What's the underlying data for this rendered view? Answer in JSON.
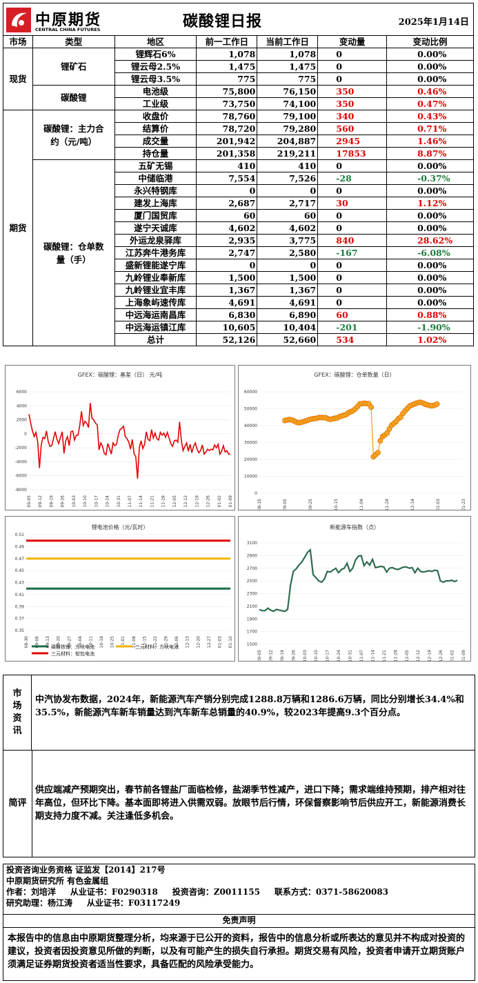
{
  "header": {
    "logo_cn": "中原期货",
    "logo_en": "CENTRAL CHINA FUTURES",
    "title": "碳酸锂日报",
    "date": "2025年1月14日"
  },
  "columns": [
    "市场",
    "类型",
    "地区",
    "前一工作日",
    "当前工作日",
    "变动量",
    "变动比例"
  ],
  "spot": {
    "market": "现货",
    "ore_label": "锂矿石",
    "ore_rows": [
      {
        "name": "锂辉石6%",
        "prev": "1,078",
        "curr": "1,078",
        "chg": "0",
        "pct": "0.00%"
      },
      {
        "name": "锂云母2.5%",
        "prev": "1,475",
        "curr": "1,475",
        "chg": "0",
        "pct": "0.00%"
      },
      {
        "name": "锂云母3.5%",
        "prev": "775",
        "curr": "775",
        "chg": "0",
        "pct": "0.00%"
      }
    ],
    "lc_label": "碳酸锂",
    "lc_rows": [
      {
        "name": "电池级",
        "prev": "75,800",
        "curr": "76,150",
        "chg": "350",
        "pct": "0.46%"
      },
      {
        "name": "工业级",
        "prev": "73,750",
        "curr": "74,100",
        "chg": "350",
        "pct": "0.47%"
      }
    ]
  },
  "futures": {
    "market": "期货",
    "main_label": "碳酸锂：主力合约（元/吨）",
    "main_rows": [
      {
        "name": "收盘价",
        "prev": "78,760",
        "curr": "79,100",
        "chg": "340",
        "pct": "0.43%"
      },
      {
        "name": "结算价",
        "prev": "78,720",
        "curr": "79,280",
        "chg": "560",
        "pct": "0.71%"
      },
      {
        "name": "成交量",
        "prev": "201,942",
        "curr": "204,887",
        "chg": "2945",
        "pct": "1.46%"
      },
      {
        "name": "持仓量",
        "prev": "201,358",
        "curr": "219,211",
        "chg": "17853",
        "pct": "8.87%"
      }
    ],
    "wh_label": "碳酸锂：仓单数量（手）",
    "wh_rows": [
      {
        "name": "五矿无锡",
        "prev": "410",
        "curr": "410",
        "chg": "0",
        "pct": "0.00%"
      },
      {
        "name": "中储临港",
        "prev": "7,554",
        "curr": "7,526",
        "chg": "-28",
        "pct": "-0.37%"
      },
      {
        "name": "永兴特钢库",
        "prev": "0",
        "curr": "0",
        "chg": "0",
        "pct": "0.00%"
      },
      {
        "name": "建发上海库",
        "prev": "2,687",
        "curr": "2,717",
        "chg": "30",
        "pct": "1.12%"
      },
      {
        "name": "厦门国贸库",
        "prev": "60",
        "curr": "60",
        "chg": "0",
        "pct": "0.00%"
      },
      {
        "name": "遂宁天诚库",
        "prev": "4,602",
        "curr": "4,602",
        "chg": "0",
        "pct": "0.00%"
      },
      {
        "name": "外运龙泉驿库",
        "prev": "2,935",
        "curr": "3,775",
        "chg": "840",
        "pct": "28.62%"
      },
      {
        "name": "江苏奔牛港务库",
        "prev": "2,747",
        "curr": "2,580",
        "chg": "-167",
        "pct": "-6.08%"
      },
      {
        "name": "盛新锂能遂宁库",
        "prev": "0",
        "curr": "0",
        "chg": "0",
        "pct": "0.00%"
      },
      {
        "name": "九岭锂业奉新库",
        "prev": "1,500",
        "curr": "1,500",
        "chg": "0",
        "pct": "0.00%"
      },
      {
        "name": "九岭锂业宜丰库",
        "prev": "1,367",
        "curr": "1,367",
        "chg": "0",
        "pct": "0.00%"
      },
      {
        "name": "上海象屿速传库",
        "prev": "4,691",
        "curr": "4,691",
        "chg": "0",
        "pct": "0.00%"
      },
      {
        "name": "中远海运南昌库",
        "prev": "6,830",
        "curr": "6,890",
        "chg": "60",
        "pct": "0.88%"
      },
      {
        "name": "中远海运镇江库",
        "prev": "10,605",
        "curr": "10,404",
        "chg": "-201",
        "pct": "-1.90%"
      },
      {
        "name": "总计",
        "prev": "52,126",
        "curr": "52,660",
        "chg": "534",
        "pct": "1.02%"
      }
    ]
  },
  "colors": {
    "up": "#e00000",
    "down": "#1a7a3a",
    "flat": "#000000"
  },
  "chart_data": [
    {
      "type": "line",
      "title": "GFEX：碳酸锂：基差（日） 元/吨",
      "x_ticks": [
        "09-05",
        "09-12",
        "09-19",
        "09-26",
        "10-03",
        "10-10",
        "10-17",
        "10-24",
        "10-31",
        "11-07",
        "11-14",
        "11-21",
        "11-28",
        "12-05",
        "12-12",
        "12-19",
        "12-26",
        "01-02",
        "01-09"
      ],
      "ylim": [
        -8000,
        6000
      ],
      "y_ticks": [
        6000,
        4000,
        2000,
        0,
        -2000,
        -4000,
        -6000,
        -8000
      ],
      "color": "#e00000",
      "values": [
        2800,
        1500,
        400,
        -400,
        200,
        -1200,
        -4900,
        -1600,
        -500,
        -700,
        400,
        -1100,
        -1800,
        -1700,
        -700,
        300,
        -800,
        -1400,
        -500,
        300,
        -2800,
        -1000,
        -400,
        -1700,
        300,
        400,
        -900,
        -200,
        -200,
        1200,
        3200,
        1200,
        1800,
        1500,
        900,
        4400,
        2200,
        2000,
        1500,
        1300,
        -2300,
        -1300,
        -1800,
        -2800,
        -3000,
        -1400,
        -2100,
        -2900,
        -1300,
        -1700,
        -1500,
        -200,
        600,
        800,
        1100,
        -400,
        -700,
        -1200,
        -2200,
        -800,
        -2800,
        -3300,
        -6400,
        -2000,
        -1000,
        -2100,
        -1500,
        300,
        -800,
        -1000,
        600,
        -600,
        100,
        -700,
        -900,
        200,
        -200,
        100,
        -500,
        200,
        -600,
        -1400,
        -1800,
        -1000,
        -900,
        -1200,
        1700,
        -900,
        -2400,
        -1800,
        -1300,
        -2500,
        -1500,
        -2700,
        -1800,
        -1300,
        -2200,
        -2700,
        -2400,
        -1600,
        -2900,
        -2600,
        -2200,
        -2400,
        -2200,
        -2300,
        -1600,
        -2000,
        -1500,
        -2900,
        -2500,
        -1700,
        -2600,
        -2400,
        -2900,
        -2900
      ]
    },
    {
      "type": "scatter",
      "title": "GFEX：碳酸锂：仓单数量（日）",
      "x_ticks": [
        "08-16",
        "09-05",
        "09-25",
        "10-15",
        "11-04",
        "11-24",
        "12-14",
        "01-03",
        "01-23"
      ],
      "ylim": [
        0,
        60000
      ],
      "y_ticks": [
        60000,
        50000,
        40000,
        30000,
        20000,
        10000,
        0
      ],
      "color": "#f39c12",
      "values": [
        43000,
        43300,
        43600,
        43300,
        42800,
        42100,
        41700,
        41900,
        42300,
        42700,
        43100,
        43600,
        44000,
        44200,
        44300,
        44800,
        44800,
        44700,
        44700,
        44000,
        43700,
        44000,
        44400,
        44500,
        45300,
        45700,
        46100,
        46500,
        47600,
        48200,
        48800,
        49900,
        51300,
        52800,
        53000,
        53200,
        53000,
        52900,
        50900,
        21600,
        22800,
        24000,
        31000,
        33500,
        34400,
        35600,
        38000,
        40200,
        41300,
        42400,
        44100,
        45000,
        47200,
        48800,
        50200,
        51600,
        52200,
        52700,
        53300,
        53700,
        53700,
        53200,
        52600,
        52200,
        51800,
        51800,
        52100,
        52700
      ]
    },
    {
      "type": "line",
      "title": "锂电池价格（元/瓦时）",
      "x_ticks": [
        "08-30",
        "09-06",
        "09-13",
        "09-20",
        "09-27",
        "10-04",
        "10-11",
        "10-18",
        "10-25",
        "11-01",
        "11-08",
        "11-15",
        "11-22",
        "11-29",
        "12-06",
        "12-13",
        "12-20",
        "12-27",
        "01-03",
        "01-10"
      ],
      "ylim": [
        0.35,
        0.51
      ],
      "y_ticks": [
        0.51,
        0.49,
        0.47,
        0.45,
        0.43,
        0.41,
        0.39,
        0.37,
        0.35
      ],
      "series": [
        {
          "name": "磷酸铁锂：方块电池",
          "color": "#1a6e46",
          "value": 0.42
        },
        {
          "name": "三元材料：方块电池",
          "color": "#f2b300",
          "value": 0.47
        },
        {
          "name": "三元材料：软包电池",
          "color": "#e00000",
          "value": 0.5
        }
      ]
    },
    {
      "type": "line",
      "title": "新能源车指数（点）",
      "x_ticks": [
        "09-05",
        "09-12",
        "09-19",
        "09-26",
        "10-03",
        "10-10",
        "10-17",
        "10-24",
        "10-31",
        "11-07",
        "11-14",
        "11-21",
        "11-28",
        "12-05",
        "12-12",
        "12-19",
        "12-26",
        "01-02",
        "01-09"
      ],
      "ylim": [
        1500,
        3100
      ],
      "y_ticks": [
        3100,
        2900,
        2700,
        2500,
        2300,
        2100,
        1900,
        1700,
        1500
      ],
      "color": "#2d6b4e",
      "values": [
        2050,
        2030,
        2030,
        2070,
        2040,
        2020,
        2050,
        2040,
        2030,
        2020,
        2050,
        2430,
        2650,
        2690,
        2750,
        2800,
        2870,
        2950,
        2990,
        2600,
        2550,
        2500,
        2480,
        2530,
        2650,
        2640,
        2670,
        2700,
        2630,
        2680,
        2700,
        2780,
        2650,
        2700,
        2830,
        2890,
        2900,
        2740,
        2800,
        2750,
        2840,
        2710,
        2720,
        2730,
        2720,
        2640,
        2700,
        2710,
        2690,
        2680,
        2700,
        2720,
        2720,
        2700,
        2710,
        2630,
        2700,
        2650,
        2640,
        2650,
        2660,
        2650,
        2670,
        2660,
        2500,
        2480,
        2500,
        2500,
        2510,
        2490,
        2510
      ]
    }
  ],
  "market_news": {
    "label": "市场资讯",
    "text": "中汽协发布数据，2024年，新能源汽车产销分别完成1288.8万辆和1286.6万辆，同比分别增长34.4%和35.5%，新能源汽车新车销量达到汽车新车总销量的40.9%，较2023年提高9.3个百分点。"
  },
  "comment": {
    "label": "简评",
    "text": "供应端减产预期突出，春节前各锂盐厂面临检修，盐湖季节性减产，进口下降；需求端维持预期，排产相对往年高位，但环比下降。基本面即将进入供需双弱。放眼节后行情，环保督察影响节后供应开工，新能源消费长期支持力度不减。关注逢低多机会。"
  },
  "footer": {
    "line1": "投资咨询业务资格  证监发【2014】217号",
    "line2": "中原期货研究所   有色金属组",
    "line3": "作者：刘培洋     从业证书：F0290318     投资咨询：Z0011155     联系方式：0371-58620083",
    "line4": "研究助理：杨江涛     从业证书：F03117249",
    "disclaimer_title": "免责声明",
    "disclaimer": "本报告中的信息由中原期货整理分析，均来源于已公开的资料，报告中的信息分析或所表达的意见并不构成对投资的建议，投资者因投资意见所做的判断，以及有可能产生的损失自行承担。期货交易有风险，投资者申请开立期货账户须满足证券期货投资者适当性要求，具备匹配的风险承受能力。"
  }
}
